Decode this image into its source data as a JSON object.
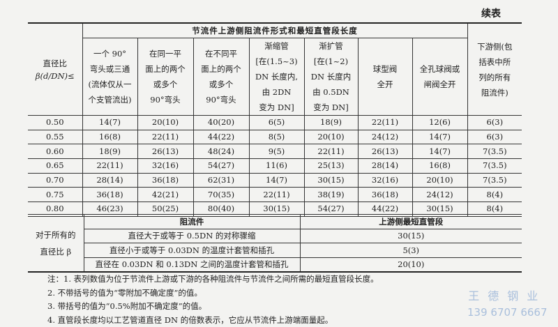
{
  "continued_label": "续表",
  "header": {
    "ratio_label_line1": "直径比",
    "ratio_label_line2": "β(d/DN)≤",
    "upstream_group": "节流件上游侧阻流件形式和最短直管段长度",
    "columns": [
      [
        "一个 90°",
        "弯头或三通",
        "(流体仅从一",
        "个支管流出)"
      ],
      [
        "在同一平",
        "面上的两个",
        "或多个",
        "90°弯头"
      ],
      [
        "在不同平",
        "面上的两个",
        "或多个",
        "90°弯头"
      ],
      [
        "渐缩管",
        "[在(1.5~3)",
        "DN 长度内,",
        "由 2DN",
        "变为 DN]"
      ],
      [
        "渐扩管",
        "[在(1~2)",
        "DN 长度内",
        "由 0.5DN",
        "变为 DN]"
      ],
      [
        "球型阀",
        "全开"
      ],
      [
        "全孔球阀或",
        "闸阀全开"
      ],
      [
        "下游侧(包",
        "括表中所",
        "列的所有",
        "阻流件)"
      ]
    ]
  },
  "rows": [
    {
      "beta": "0.50",
      "values": [
        "14(7)",
        "20(10)",
        "40(20)",
        "6(5)",
        "18(9)",
        "22(11)",
        "12(6)",
        "6(3)"
      ]
    },
    {
      "beta": "0.55",
      "values": [
        "16(8)",
        "22(11)",
        "44(22)",
        "8(5)",
        "20(10)",
        "24(12)",
        "14(7)",
        "6(3)"
      ]
    },
    {
      "beta": "0.60",
      "values": [
        "18(9)",
        "26(13)",
        "48(24)",
        "9(5)",
        "22(11)",
        "26(13)",
        "14(7)",
        "7(3.5)"
      ]
    },
    {
      "beta": "0.65",
      "values": [
        "22(11)",
        "32(16)",
        "54(27)",
        "11(6)",
        "25(13)",
        "28(14)",
        "16(8)",
        "7(3.5)"
      ]
    },
    {
      "beta": "0.70",
      "values": [
        "28(14)",
        "36(18)",
        "62(31)",
        "14(7)",
        "30(15)",
        "32(16)",
        "20(10)",
        "7(3.5)"
      ]
    },
    {
      "beta": "0.75",
      "values": [
        "36(18)",
        "42(21)",
        "70(35)",
        "22(11)",
        "38(19)",
        "36(18)",
        "24(12)",
        "8(4)"
      ]
    },
    {
      "beta": "0.80",
      "values": [
        "46(23)",
        "50(25)",
        "80(40)",
        "30(15)",
        "54(27)",
        "44(22)",
        "30(15)",
        "8(4)"
      ]
    }
  ],
  "lower": {
    "label_line1": "对于所有的",
    "label_line2": "直径比 β",
    "col_fitting": "阻流件",
    "col_length": "上游侧最短直管段",
    "rows": [
      {
        "fitting": "直径大于或等于 0.5DN 的对称骤缩",
        "length": "30(15)"
      },
      {
        "fitting": "直径小于或等于 0.03DN 的温度计套管和插孔",
        "length": "5(3)"
      },
      {
        "fitting": "直径在 0.03DN 和 0.13DN 之间的温度计套管和插孔",
        "length": "20(10)"
      }
    ]
  },
  "notes": [
    "注：1. 表列数值为位于节流件上游或下游的各种阻流件与节流件之间所需的最短直管段长度。",
    "2. 不带括号的值为“零附加不确定度”的值。",
    "3. 带括号的值为“0.5%附加不确定度”的值。",
    "4. 直管段长度均以工艺管道直径 DN 的倍数表示，它应从节流件上游端面量起。"
  ],
  "watermark": {
    "name": "王德钢业",
    "phone": "139 6707 6667",
    "color": "#a9bfdc"
  }
}
